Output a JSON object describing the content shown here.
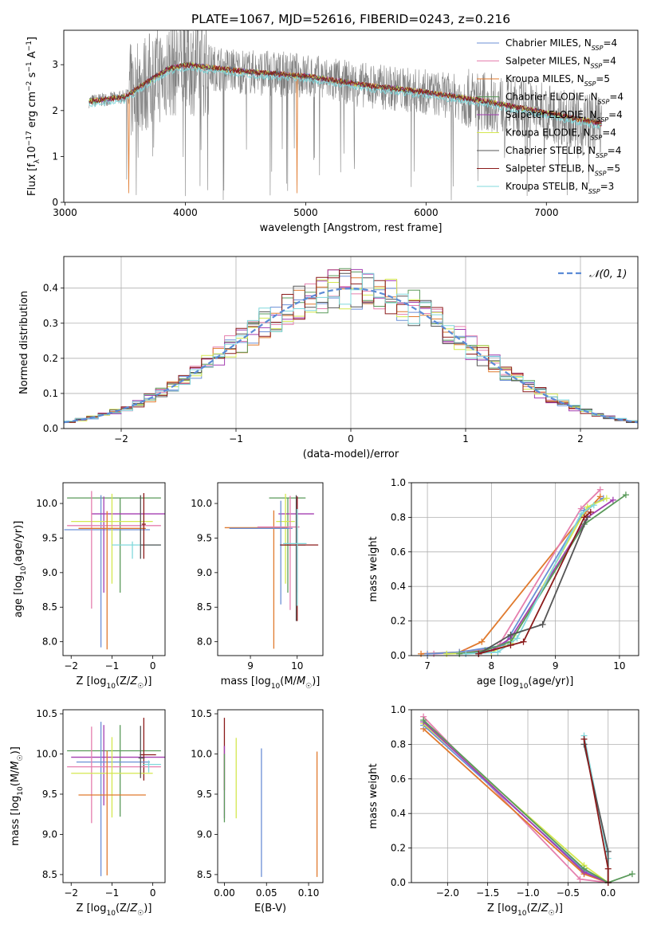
{
  "figure_title": "PLATE=1067, MJD=52616, FIBERID=0243, z=0.216",
  "colors": {
    "Chabrier MILES": "#6b8fd6",
    "Salpeter MILES": "#e57fae",
    "Kroupa MILES": "#e07a2e",
    "Chabrier ELODIE": "#5a9a5a",
    "Salpeter ELODIE": "#a33db0",
    "Kroupa ELODIE": "#d4e84f",
    "Chabrier STELIB": "#555555",
    "Salpeter STELIB": "#8b1a1a",
    "Kroupa STELIB": "#80d8dc",
    "data": "#808080",
    "normal": "#5b8bd6"
  },
  "chart_data": [
    {
      "id": "spectrum",
      "type": "line",
      "xlabel": "wavelength [Angstrom, rest frame]",
      "ylabel": "Flux [f_λ 10^-17 erg cm^-2 s^-1 A^-1]",
      "xlim": [
        2990,
        7760
      ],
      "ylim": [
        0,
        3.75
      ],
      "xticks": [
        3000,
        4000,
        5000,
        6000,
        7000
      ],
      "yticks": [
        0,
        1,
        2,
        3
      ],
      "legend_position": "top-right",
      "legend": [
        {
          "name": "Chabrier MILES",
          "nssp": "4"
        },
        {
          "name": "Salpeter MILES",
          "nssp": "4"
        },
        {
          "name": "Kroupa MILES",
          "nssp": "5"
        },
        {
          "name": "Chabrier ELODIE",
          "nssp": "4"
        },
        {
          "name": "Salpeter ELODIE",
          "nssp": "4"
        },
        {
          "name": "Kroupa ELODIE",
          "nssp": "4"
        },
        {
          "name": "Chabrier STELIB",
          "nssp": "4"
        },
        {
          "name": "Salpeter STELIB",
          "nssp": "5"
        },
        {
          "name": "Kroupa STELIB",
          "nssp": "3"
        }
      ],
      "data_range": [
        3200,
        7460
      ],
      "model_continuum": [
        [
          3200,
          2.2
        ],
        [
          3500,
          2.3
        ],
        [
          3700,
          2.65
        ],
        [
          3850,
          2.9
        ],
        [
          4000,
          3.0
        ],
        [
          4500,
          2.85
        ],
        [
          5000,
          2.75
        ],
        [
          5500,
          2.55
        ],
        [
          6000,
          2.4
        ],
        [
          6500,
          2.2
        ],
        [
          7000,
          1.95
        ],
        [
          7460,
          1.72
        ]
      ]
    },
    {
      "id": "residuals",
      "type": "histogram",
      "xlabel": "(data-model)/error",
      "ylabel": "Normed distribution",
      "xlim": [
        -2.5,
        2.5
      ],
      "ylim": [
        0,
        0.49
      ],
      "xticks": [
        -2,
        -1,
        0,
        1,
        2
      ],
      "yticks": [
        0.0,
        0.1,
        0.2,
        0.3,
        0.4
      ],
      "grid": true,
      "legend_position": "top-right",
      "legend": "N(0,1)",
      "bin_width": 0.1
    },
    {
      "id": "age-vs-Z",
      "type": "errorbar",
      "xlabel": "Z [log10(Z/Z☉)]",
      "ylabel": "age [log10(age/yr)]",
      "xlim": [
        -2.2,
        0.3
      ],
      "ylim": [
        7.8,
        10.3
      ],
      "xticks": [
        -2,
        -1,
        0
      ],
      "yticks": [
        8.0,
        8.5,
        9.0,
        9.5,
        10.0
      ],
      "points": [
        {
          "model": "Chabrier ELODIE",
          "x": -0.8,
          "xerr": [
            1.3,
            1.0
          ],
          "y": 10.08,
          "yerr": [
            1.37,
            0
          ]
        },
        {
          "model": "Chabrier MILES",
          "x": -1.27,
          "xerr": [
            0.9,
            1.2
          ],
          "y": 9.62,
          "yerr": [
            1.7,
            0.5
          ]
        },
        {
          "model": "Salpeter ELODIE",
          "x": -1.2,
          "xerr": [
            0.3,
            1.5
          ],
          "y": 9.85,
          "yerr": [
            1.14,
            0.25
          ]
        },
        {
          "model": "Kroupa ELODIE",
          "x": -1.0,
          "xerr": [
            1.0,
            1.0
          ],
          "y": 9.74,
          "yerr": [
            0.9,
            0.4
          ]
        },
        {
          "model": "Salpeter MILES",
          "x": -1.5,
          "xerr": [
            0.6,
            1.7
          ],
          "y": 9.68,
          "yerr": [
            1.2,
            0.5
          ]
        },
        {
          "model": "Kroupa MILES",
          "x": -1.12,
          "xerr": [
            0.7,
            0.95
          ],
          "y": 9.64,
          "yerr": [
            1.75,
            0.25
          ]
        },
        {
          "model": "Kroupa STELIB",
          "x": -0.5,
          "xerr": [
            0.5,
            0.7
          ],
          "y": 9.4,
          "yerr": [
            0.2,
            0.05
          ]
        },
        {
          "model": "Chabrier STELIB",
          "x": -0.3,
          "xerr": [
            0.0,
            0.5
          ],
          "y": 9.4,
          "yerr": [
            0.2,
            0.72
          ]
        },
        {
          "model": "Salpeter STELIB",
          "x": -0.22,
          "xerr": [
            0.05,
            0.05
          ],
          "y": 9.7,
          "yerr": [
            0.5,
            0.45
          ]
        }
      ]
    },
    {
      "id": "age-vs-mass",
      "type": "errorbar",
      "xlabel": "mass [log10(M/M☉)]",
      "ylabel": "",
      "xlim": [
        8.3,
        10.55
      ],
      "ylim": [
        7.8,
        10.3
      ],
      "xticks": [
        9,
        10
      ],
      "yticks": [
        8.0,
        8.5,
        9.0,
        9.5,
        10.0
      ],
      "points": [
        {
          "model": "Chabrier ELODIE",
          "x": 9.8,
          "xerr": [
            0.4,
            0.38
          ],
          "y": 10.08,
          "yerr": [
            1.37,
            0
          ]
        },
        {
          "model": "Salpeter ELODIE",
          "x": 10.0,
          "xerr": [
            0.4,
            0.36
          ],
          "y": 9.85,
          "yerr": [
            1.14,
            0.25
          ]
        },
        {
          "model": "Kroupa ELODIE",
          "x": 9.75,
          "xerr": [
            0.2,
            0.2
          ],
          "y": 9.74,
          "yerr": [
            0.9,
            0.4
          ]
        },
        {
          "model": "Kroupa MILES",
          "x": 9.5,
          "xerr": [
            1.05,
            0.3
          ],
          "y": 9.65,
          "yerr": [
            1.75,
            0.25
          ]
        },
        {
          "model": "Chabrier MILES",
          "x": 9.65,
          "xerr": [
            1.1,
            0.25
          ],
          "y": 9.64,
          "yerr": [
            1.1,
            0.4
          ]
        },
        {
          "model": "Salpeter MILES",
          "x": 9.85,
          "xerr": [
            0.7,
            0.2
          ],
          "y": 9.66,
          "yerr": [
            1.2,
            0.45
          ]
        },
        {
          "model": "Chabrier STELIB",
          "x": 9.98,
          "xerr": [
            0.35,
            0.2
          ],
          "y": 9.4,
          "yerr": [
            1.1,
            0.72
          ]
        },
        {
          "model": "Salpeter STELIB",
          "x": 10.0,
          "xerr": [
            0.35,
            0.45
          ],
          "y": 9.4,
          "yerr": [
            1.1,
            0.7
          ]
        },
        {
          "model": "Kroupa STELIB",
          "x": 10.0,
          "xerr": [
            0.3,
            0.2
          ],
          "y": 9.42,
          "yerr": [
            0.9,
            0.5
          ]
        }
      ]
    },
    {
      "id": "mass-weight-vs-age",
      "type": "line",
      "xlabel": "age [log10(age/yr)]",
      "ylabel": "mass weight",
      "xlim": [
        6.75,
        10.3
      ],
      "ylim": [
        0,
        1.0
      ],
      "xticks": [
        7,
        8,
        9,
        10
      ],
      "yticks": [
        0.0,
        0.2,
        0.4,
        0.6,
        0.8,
        1.0
      ],
      "grid": true,
      "series": [
        {
          "model": "Kroupa MILES",
          "x": [
            6.9,
            7.5,
            7.85,
            9.45,
            9.7
          ],
          "y": [
            0.01,
            0.02,
            0.08,
            0.82,
            0.92
          ]
        },
        {
          "model": "Salpeter MILES",
          "x": [
            7.1,
            7.6,
            8.1,
            9.4,
            9.7
          ],
          "y": [
            0.01,
            0.02,
            0.05,
            0.85,
            0.96
          ]
        },
        {
          "model": "Chabrier MILES",
          "x": [
            7.0,
            7.5,
            8.2,
            9.45,
            9.75
          ],
          "y": [
            0.01,
            0.02,
            0.06,
            0.84,
            0.91
          ]
        },
        {
          "model": "Kroupa ELODIE",
          "x": [
            7.3,
            8.0,
            8.3,
            9.5,
            9.8
          ],
          "y": [
            0.01,
            0.02,
            0.07,
            0.86,
            0.91
          ]
        },
        {
          "model": "Salpeter ELODIE",
          "x": [
            7.6,
            8.0,
            8.3,
            9.5,
            9.9
          ],
          "y": [
            0.01,
            0.03,
            0.1,
            0.8,
            0.9
          ]
        },
        {
          "model": "Chabrier ELODIE",
          "x": [
            7.5,
            7.9,
            8.3,
            9.45,
            10.1
          ],
          "y": [
            0.01,
            0.03,
            0.08,
            0.76,
            0.93
          ]
        },
        {
          "model": "Kroupa STELIB",
          "x": [
            7.6,
            8.1,
            8.4,
            9.4,
            9.6
          ],
          "y": [
            0.01,
            0.02,
            0.1,
            0.82,
            0.87
          ]
        },
        {
          "model": "Chabrier STELIB",
          "x": [
            7.8,
            8.3,
            8.8,
            9.5
          ],
          "y": [
            0.01,
            0.12,
            0.18,
            0.8
          ]
        },
        {
          "model": "Salpeter STELIB",
          "x": [
            7.8,
            8.3,
            8.5,
            9.45,
            9.55
          ],
          "y": [
            0.01,
            0.06,
            0.08,
            0.8,
            0.83
          ]
        }
      ]
    },
    {
      "id": "mass-vs-Z",
      "type": "errorbar",
      "xlabel": "Z [log10(Z/Z☉)]",
      "ylabel": "mass [log10(M/M☉)]",
      "xlim": [
        -2.2,
        0.3
      ],
      "ylim": [
        8.4,
        10.55
      ],
      "xticks": [
        -2,
        -1,
        0
      ],
      "yticks": [
        8.5,
        9.0,
        9.5,
        10.0,
        10.5
      ],
      "points": [
        {
          "model": "Chabrier ELODIE",
          "x": -0.8,
          "xerr": [
            1.3,
            1.0
          ],
          "y": 10.04,
          "yerr": [
            0.82,
            0.32
          ]
        },
        {
          "model": "Salpeter ELODIE",
          "x": -1.2,
          "xerr": [
            0.8,
            1.5
          ],
          "y": 9.96,
          "yerr": [
            0.6,
            0.4
          ]
        },
        {
          "model": "Salpeter STELIB",
          "x": -0.22,
          "xerr": [
            0.1,
            0.3
          ],
          "y": 9.99,
          "yerr": [
            0.32,
            0.46
          ]
        },
        {
          "model": "Chabrier MILES",
          "x": -1.27,
          "xerr": [
            0.6,
            1.2
          ],
          "y": 9.9,
          "yerr": [
            1.42,
            0.5
          ]
        },
        {
          "model": "Salpeter MILES",
          "x": -1.5,
          "xerr": [
            0.6,
            1.7
          ],
          "y": 9.84,
          "yerr": [
            0.7,
            0.5
          ]
        },
        {
          "model": "Kroupa STELIB",
          "x": -0.1,
          "xerr": [
            0.15,
            0.3
          ],
          "y": 9.87,
          "yerr": [
            0.1,
            0.05
          ]
        },
        {
          "model": "Kroupa ELODIE",
          "x": -1.0,
          "xerr": [
            1.0,
            1.0
          ],
          "y": 9.76,
          "yerr": [
            0.55,
            0.45
          ]
        },
        {
          "model": "Kroupa MILES",
          "x": -1.12,
          "xerr": [
            0.7,
            0.95
          ],
          "y": 9.49,
          "yerr": [
            1.0,
            0.55
          ]
        },
        {
          "model": "Chabrier STELIB",
          "x": -0.3,
          "xerr": [
            0.05,
            0.1
          ],
          "y": 9.95,
          "yerr": [
            0.25,
            0.4
          ]
        }
      ]
    },
    {
      "id": "mass-vs-ebv",
      "type": "errorbar",
      "xlabel": "E(B-V)",
      "ylabel": "",
      "xlim": [
        -0.008,
        0.117
      ],
      "ylim": [
        8.4,
        10.55
      ],
      "xticks": [
        0.0,
        0.05,
        0.1
      ],
      "xticklabels": [
        "0.00",
        "0.05",
        "0.10"
      ],
      "yticks": [
        8.5,
        9.0,
        9.5,
        10.0,
        10.5
      ],
      "points": [
        {
          "model": "Chabrier MILES",
          "x": 0.044,
          "y": 9.27,
          "yerr": [
            0.8,
            0.8
          ]
        },
        {
          "model": "Kroupa MILES",
          "x": 0.11,
          "y": 9.25,
          "yerr": [
            0.78,
            0.78
          ]
        },
        {
          "model": "Kroupa ELODIE",
          "x": 0.014,
          "y": 9.7,
          "yerr": [
            0.5,
            0.5
          ]
        },
        {
          "model": "Salpeter STELIB",
          "x": 0.0,
          "y": 10.0,
          "yerr": [
            0.45,
            0.45
          ]
        },
        {
          "model": "Salpeter ELODIE",
          "x": 0.0,
          "y": 9.7,
          "yerr": [
            0.5,
            0.4
          ]
        },
        {
          "model": "Chabrier ELODIE",
          "x": 0.0,
          "y": 9.6,
          "yerr": [
            0.45,
            0.4
          ]
        }
      ]
    },
    {
      "id": "mass-weight-vs-Z",
      "type": "line",
      "xlabel": "Z [log10(Z/Z☉)]",
      "ylabel": "mass weight",
      "xlim": [
        -2.45,
        0.38
      ],
      "ylim": [
        0,
        1.0
      ],
      "xticks": [
        -2.0,
        -1.5,
        -1.0,
        -0.5,
        0.0
      ],
      "xticklabels": [
        "−2.0",
        "−1.5",
        "−1.0",
        "−0.5",
        "0.0"
      ],
      "yticks": [
        0.0,
        0.2,
        0.4,
        0.6,
        0.8,
        1.0
      ],
      "grid": true,
      "series": [
        {
          "model": "Salpeter MILES",
          "x": [
            -2.3,
            -0.35,
            0.0
          ],
          "y": [
            0.96,
            0.02,
            0.0
          ]
        },
        {
          "model": "Kroupa MILES",
          "x": [
            -2.3,
            -0.3,
            0.0
          ],
          "y": [
            0.89,
            0.05,
            0.0
          ]
        },
        {
          "model": "Chabrier MILES",
          "x": [
            -2.3,
            -0.3,
            0.0
          ],
          "y": [
            0.91,
            0.07,
            0.0
          ]
        },
        {
          "model": "Kroupa ELODIE",
          "x": [
            -2.3,
            -0.3,
            0.0
          ],
          "y": [
            0.92,
            0.1,
            0.0
          ]
        },
        {
          "model": "Salpeter ELODIE",
          "x": [
            -2.3,
            -0.3,
            0.0
          ],
          "y": [
            0.93,
            0.06,
            0.0
          ]
        },
        {
          "model": "Chabrier ELODIE",
          "x": [
            -2.3,
            -0.3,
            0.0,
            0.3
          ],
          "y": [
            0.94,
            0.08,
            0.0,
            0.05
          ]
        },
        {
          "model": "Kroupa STELIB",
          "x": [
            -0.3,
            0.0,
            0.0
          ],
          "y": [
            0.85,
            0.14,
            0.0
          ]
        },
        {
          "model": "Chabrier STELIB",
          "x": [
            -0.3,
            0.0,
            0.0
          ],
          "y": [
            0.8,
            0.18,
            0.0
          ]
        },
        {
          "model": "Salpeter STELIB",
          "x": [
            -0.3,
            0.0,
            0.0
          ],
          "y": [
            0.83,
            0.08,
            0.0
          ]
        }
      ]
    }
  ]
}
